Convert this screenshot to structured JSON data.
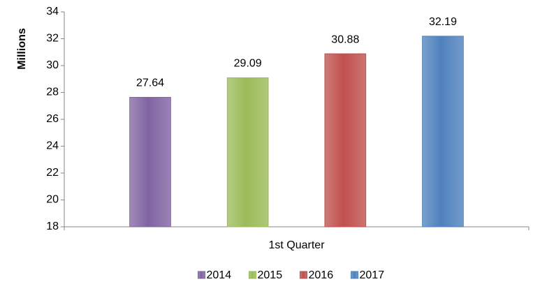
{
  "chart_data": {
    "type": "bar",
    "y_label": "Millions",
    "categories": [
      "1st Quarter"
    ],
    "series": [
      {
        "name": "2014",
        "color": "#8064a2",
        "values": [
          27.64
        ]
      },
      {
        "name": "2015",
        "color": "#9bbb59",
        "values": [
          29.09
        ]
      },
      {
        "name": "2016",
        "color": "#c0504d",
        "values": [
          30.88
        ]
      },
      {
        "name": "2017",
        "color": "#4f81bd",
        "values": [
          32.19
        ]
      }
    ],
    "ylim": [
      18,
      34
    ],
    "yticks": [
      18,
      20,
      22,
      24,
      26,
      28,
      30,
      32,
      34
    ],
    "grid": false,
    "legend": "bottom"
  }
}
